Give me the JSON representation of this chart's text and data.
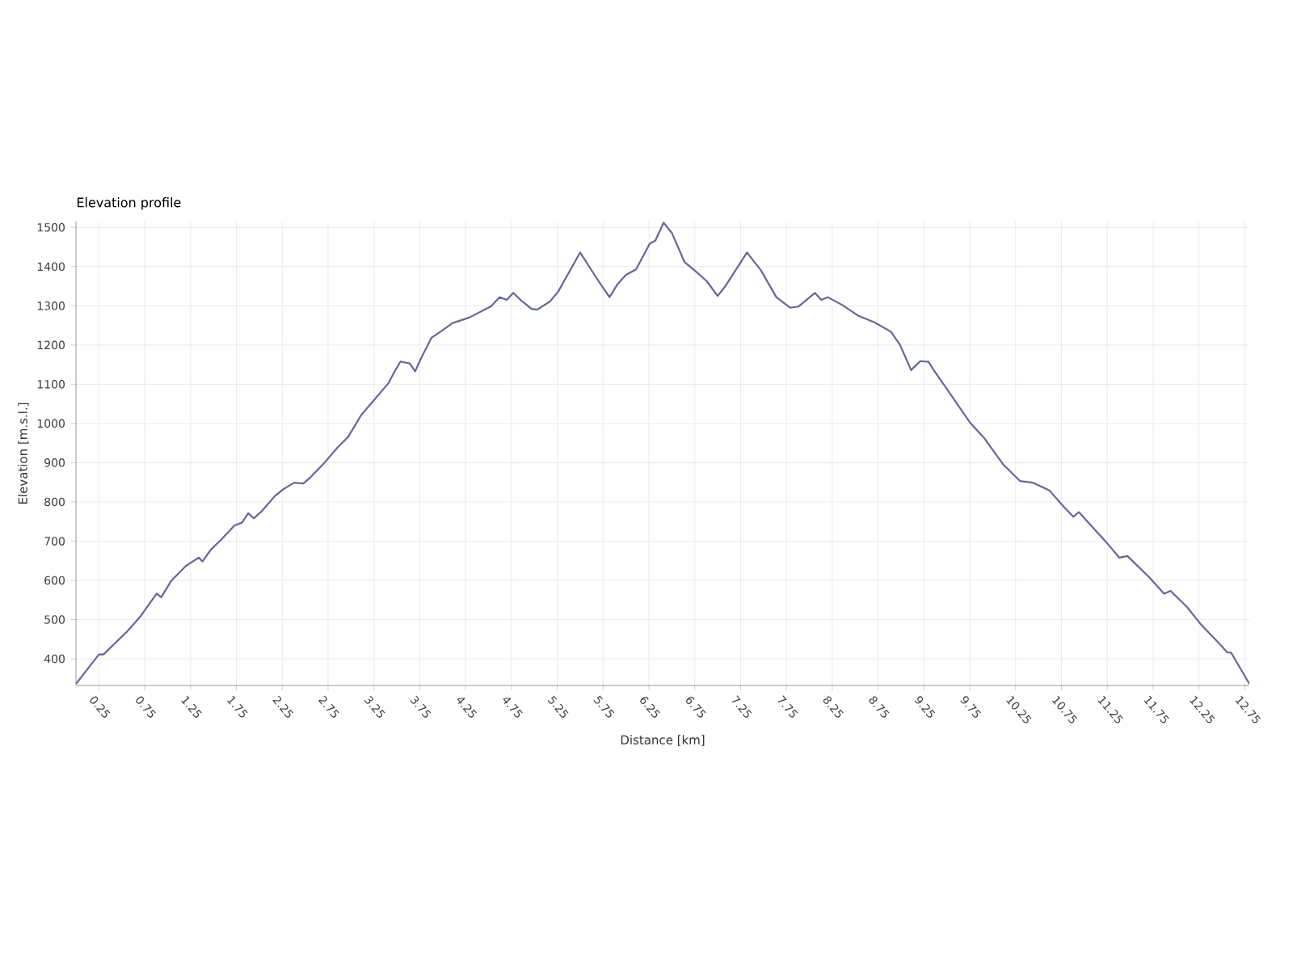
{
  "chart_data": {
    "type": "line",
    "title": "Elevation profile",
    "xlabel": "Distance [km]",
    "ylabel": "Elevation [m.s.l.]",
    "xlim": [
      0,
      12.8
    ],
    "ylim": [
      332,
      1515
    ],
    "xticks": [
      0.25,
      0.75,
      1.25,
      1.75,
      2.25,
      2.75,
      3.25,
      3.75,
      4.25,
      4.75,
      5.25,
      5.75,
      6.25,
      6.75,
      7.25,
      7.75,
      8.25,
      8.75,
      9.25,
      9.75,
      10.25,
      10.75,
      11.25,
      11.75,
      12.25,
      12.75
    ],
    "yticks": [
      400,
      500,
      600,
      700,
      800,
      900,
      1000,
      1100,
      1200,
      1300,
      1400,
      1500
    ],
    "grid": true,
    "marker": "none",
    "line_style": "solid",
    "series": [
      {
        "color": "#666699",
        "x": [
          0,
          0.25,
          0.3,
          0.56,
          0.7,
          0.88,
          0.93,
          1.04,
          1.2,
          1.34,
          1.38,
          1.47,
          1.59,
          1.73,
          1.81,
          1.88,
          1.94,
          2.03,
          2.17,
          2.26,
          2.38,
          2.48,
          2.56,
          2.7,
          2.85,
          2.97,
          3.11,
          3.26,
          3.41,
          3.47,
          3.54,
          3.64,
          3.7,
          3.76,
          3.88,
          3.97,
          4.11,
          4.29,
          4.53,
          4.62,
          4.7,
          4.77,
          4.85,
          4.97,
          5.03,
          5.17,
          5.26,
          5.5,
          5.7,
          5.82,
          5.91,
          6.0,
          6.11,
          6.26,
          6.32,
          6.41,
          6.5,
          6.64,
          6.76,
          6.88,
          7.0,
          7.08,
          7.32,
          7.47,
          7.64,
          7.79,
          7.88,
          8.06,
          8.13,
          8.2,
          8.36,
          8.53,
          8.71,
          8.89,
          8.99,
          9.11,
          9.21,
          9.3,
          9.36,
          9.53,
          9.75,
          9.91,
          10.12,
          10.3,
          10.44,
          10.62,
          10.77,
          10.88,
          10.94,
          11.03,
          11.24,
          11.38,
          11.47,
          11.71,
          11.87,
          11.94,
          12.12,
          12.27,
          12.47,
          12.56,
          12.6,
          12.8
        ],
        "values": [
          336,
          411,
          411,
          470,
          507,
          566,
          557,
          599,
          637,
          658,
          648,
          678,
          705,
          740,
          747,
          771,
          758,
          777,
          815,
          832,
          849,
          847,
          863,
          897,
          938,
          966,
          1021,
          1062,
          1103,
          1130,
          1158,
          1153,
          1133,
          1164,
          1219,
          1233,
          1256,
          1270,
          1299,
          1322,
          1315,
          1333,
          1315,
          1292,
          1290,
          1311,
          1336,
          1436,
          1363,
          1322,
          1356,
          1379,
          1393,
          1459,
          1466,
          1512,
          1486,
          1411,
          1388,
          1363,
          1325,
          1349,
          1436,
          1391,
          1322,
          1295,
          1298,
          1333,
          1315,
          1322,
          1302,
          1275,
          1258,
          1234,
          1200,
          1136,
          1159,
          1157,
          1135,
          1078,
          1003,
          962,
          894,
          853,
          849,
          829,
          789,
          762,
          774,
          751,
          697,
          658,
          662,
          607,
          566,
          573,
          532,
          488,
          439,
          416,
          416,
          336
        ]
      }
    ]
  }
}
